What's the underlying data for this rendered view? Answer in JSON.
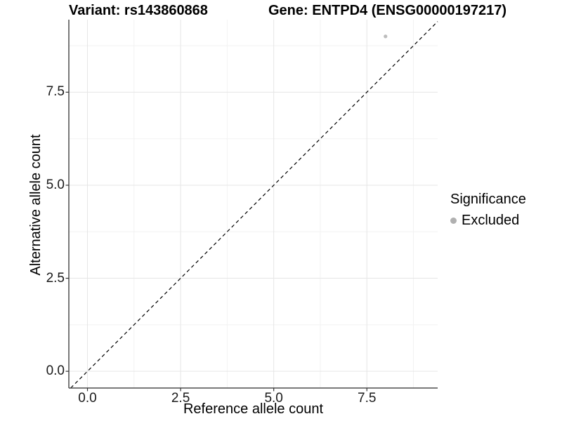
{
  "colors": {
    "background": "#ffffff",
    "grid_major": "#e6e6e6",
    "grid_minor": "#f2f2f2",
    "axis_line": "#4d4d4d",
    "tick_mark": "#333333",
    "point": "#bcbcbc",
    "legend_point": "#b0b0b0",
    "reference_line": "#000000",
    "text": "#000000"
  },
  "chart_data": {
    "type": "scatter",
    "titles": {
      "left": "Variant: rs143860868",
      "right": "Gene: ENTPD4 (ENSG00000197217)"
    },
    "xlabel": "Reference allele count",
    "ylabel": "Alternative allele count",
    "xlim": [
      -0.5,
      9.4
    ],
    "ylim": [
      -0.45,
      9.45
    ],
    "x_ticks": [
      0,
      2.5,
      5,
      7.5
    ],
    "x_tick_labels": [
      "0.0",
      "2.5",
      "5.0",
      "7.5"
    ],
    "y_ticks": [
      0,
      2.5,
      5,
      7.5
    ],
    "y_tick_labels": [
      "0.0",
      "2.5",
      "5.0",
      "7.5"
    ],
    "x_minor_ticks": [
      1.25,
      3.75,
      6.25,
      8.75
    ],
    "y_minor_ticks": [
      1.25,
      3.75,
      6.25,
      8.75
    ],
    "grid": "major+minor",
    "reference_line": {
      "type": "identity",
      "slope": 1,
      "intercept": 0,
      "style": "dashed",
      "color": "#000000"
    },
    "series": [
      {
        "name": "Excluded",
        "color": "#bcbcbc",
        "marker": "circle",
        "points": [
          {
            "x": 8,
            "y": 9
          }
        ]
      }
    ],
    "legend": {
      "title": "Significance",
      "position": "right",
      "entries": [
        {
          "label": "Excluded",
          "color": "#b0b0b0"
        }
      ]
    }
  }
}
